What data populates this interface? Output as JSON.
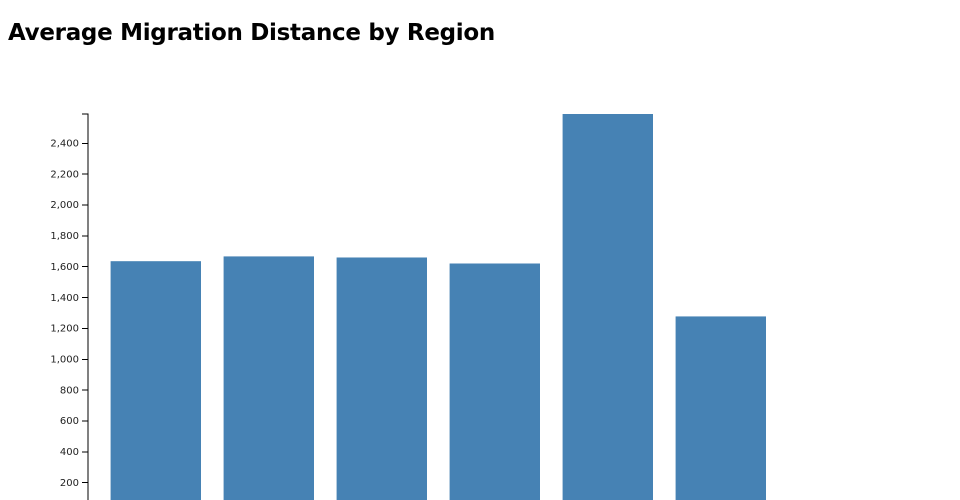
{
  "chart_data": {
    "type": "bar",
    "title": "Average Migration Distance by Region",
    "xlabel": "",
    "ylabel": "",
    "values": [
      1636,
      1667,
      1660,
      1621,
      2590,
      1278
    ],
    "ylim": [
      0,
      2590
    ],
    "yticks": [
      200,
      400,
      600,
      800,
      1000,
      1200,
      1400,
      1600,
      1800,
      2000,
      2200,
      2400
    ],
    "ytick_labels": [
      "200",
      "400",
      "600",
      "800",
      "1,000",
      "1,200",
      "1,400",
      "1,600",
      "1,800",
      "2,000",
      "2,200",
      "2,400"
    ],
    "bar_color": "#4682b4",
    "grid": false,
    "legend": "none"
  }
}
